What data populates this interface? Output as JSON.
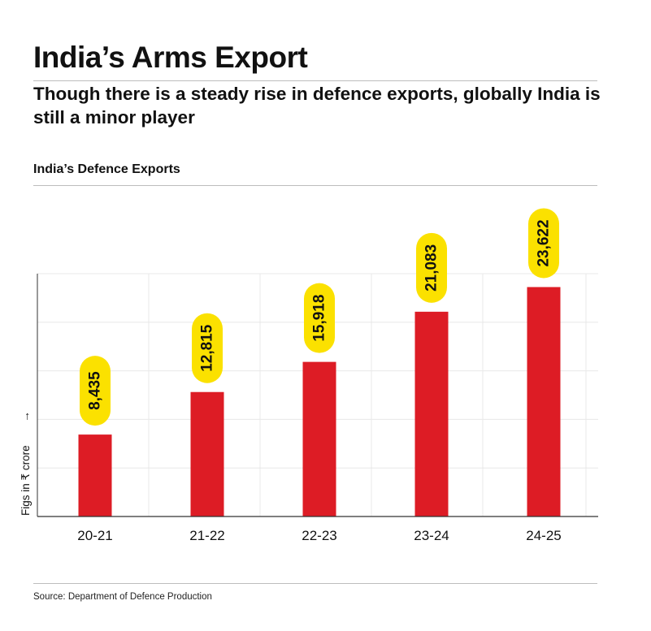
{
  "title": "India’s Arms Export",
  "subtitle": "Though there is a steady rise in defence exports, globally India is still a minor player",
  "source": "Source: Department of Defence Production",
  "colors": {
    "bar": "#dd1c25",
    "label_bubble": "#fbe100",
    "grid": "#e8e8e8",
    "axis": "#333333",
    "rule": "#bdbdbd"
  },
  "chart_data": {
    "type": "bar",
    "title": "India’s Defence Exports",
    "ylabel": "Figs in ₹ crore",
    "ylabel_arrow": "→",
    "categories": [
      "20-21",
      "21-22",
      "22-23",
      "23-24",
      "24-25"
    ],
    "values": [
      8435,
      12815,
      15918,
      21083,
      23622
    ],
    "value_labels": [
      "8,435",
      "12,815",
      "15,918",
      "21,083",
      "23,622"
    ],
    "ylim": [
      0,
      25000
    ],
    "grid": true,
    "value_label_orientation": "vertical"
  }
}
